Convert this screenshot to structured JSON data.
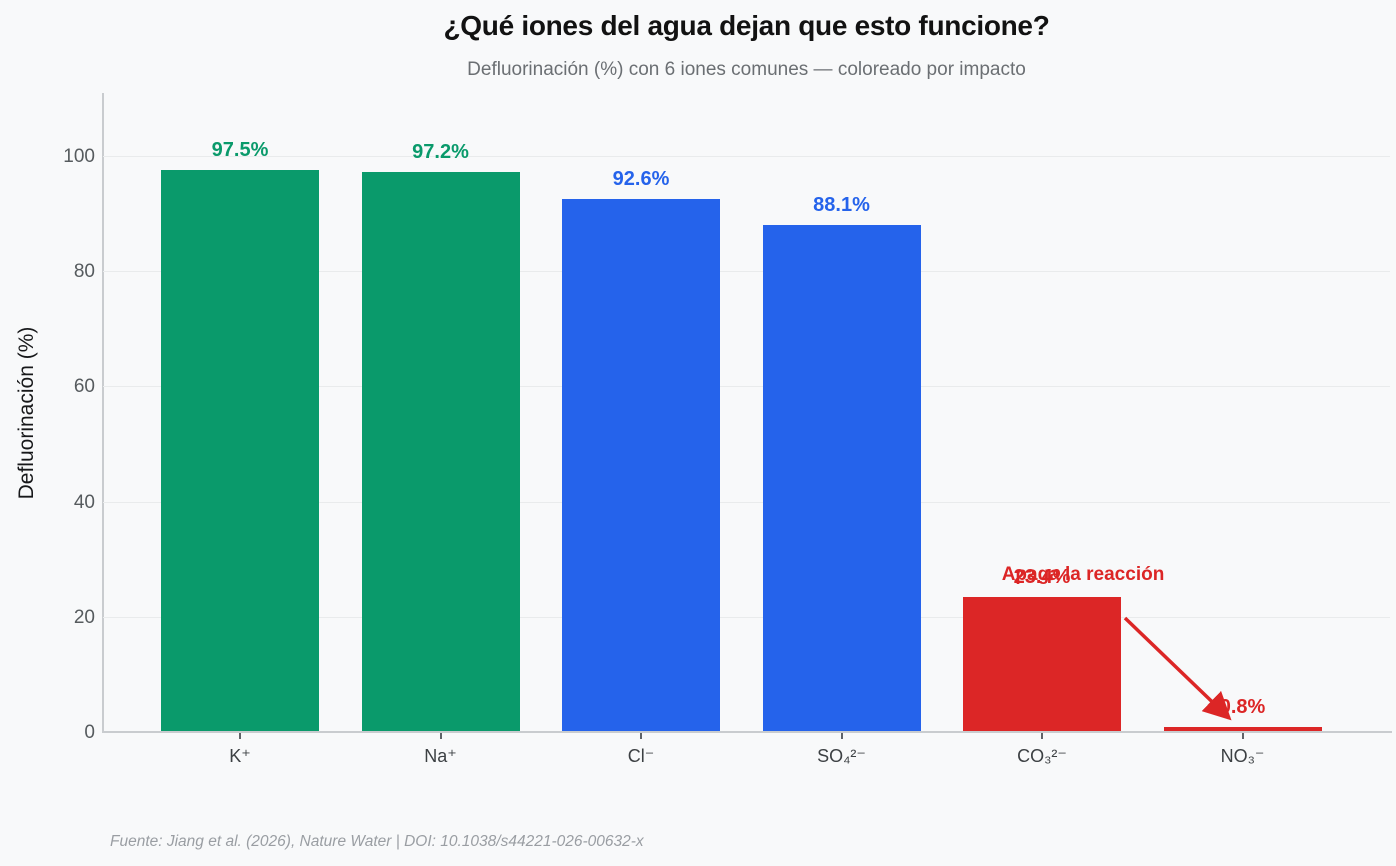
{
  "chart_data": {
    "type": "bar",
    "title": "¿Qué iones del agua dejan que esto funcione?",
    "subtitle": "Defluorinación (%) con 6 iones comunes — coloreado por impacto",
    "xlabel": "",
    "ylabel": "Defluorinación (%)",
    "categories": [
      "K⁺",
      "Na⁺",
      "Cl⁻",
      "SO₄²⁻",
      "CO₃²⁻",
      "NO₃⁻"
    ],
    "values": [
      97.5,
      97.2,
      92.6,
      88.1,
      23.4,
      0.8
    ],
    "bar_labels": [
      "97.5%",
      "97.2%",
      "92.6%",
      "88.1%",
      "23.4%",
      "0.8%"
    ],
    "bar_colors": [
      "#0a9a6b",
      "#0a9a6b",
      "#2563eb",
      "#2563eb",
      "#dc2626",
      "#dc2626"
    ],
    "impact_colors": {
      "high_performance_green": "#0a9a6b",
      "moderate_blue": "#2563eb",
      "kills_reaction_red": "#dc2626"
    },
    "yticks": [
      0,
      20,
      40,
      60,
      80,
      100
    ],
    "ylim": [
      0,
      110.9
    ],
    "grid": "horizontal",
    "legend": "none",
    "annotation": {
      "text": "Apaga la reacción",
      "color": "#dc2626",
      "points_to": "NO₃⁻"
    },
    "source": "Fuente: Jiang et al. (2026), Nature Water | DOI: 10.1038/s44221-026-00632-x"
  }
}
